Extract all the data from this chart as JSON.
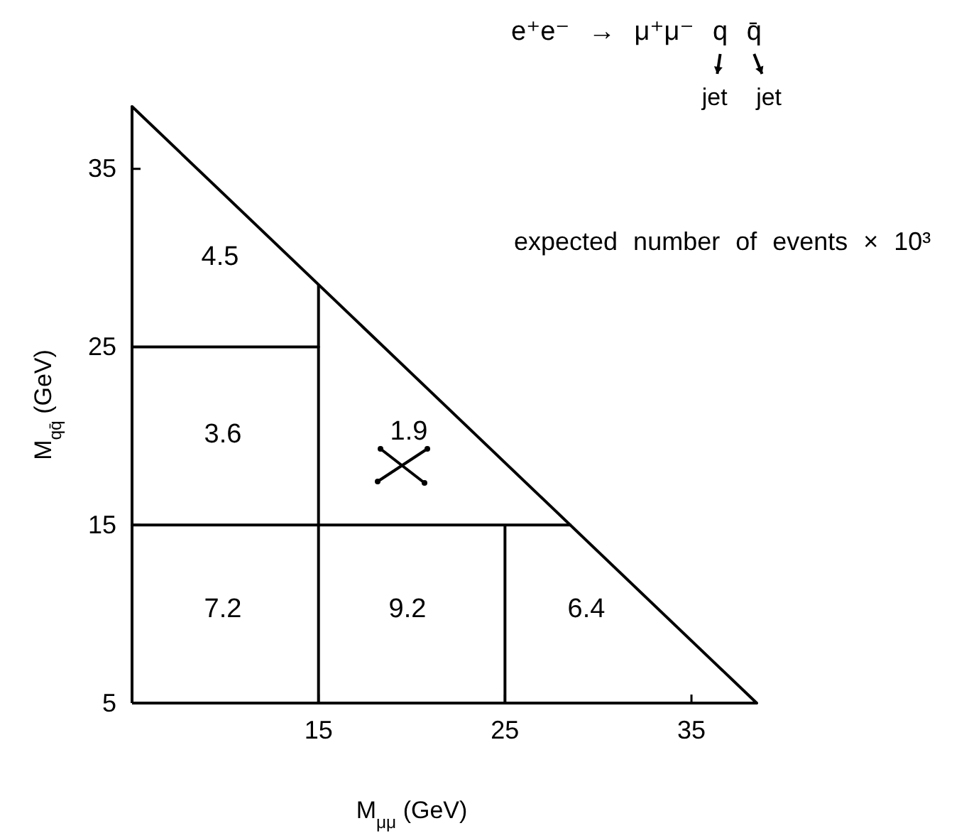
{
  "chart_data": {
    "type": "line",
    "title": "e⁺e⁻ → μ⁺μ⁻ q q̄",
    "subtitle": "expected number of events × 10³",
    "xlabel": "M$_{μμ}$ (GeV)",
    "ylabel": "M$_{qq̄}$ (GeV)",
    "series": [
      {
        "color": "#000000",
        "x": [
          5,
          38.5
        ],
        "values": [
          38.5,
          5
        ]
      },
      {
        "color": "#000000",
        "x": [
          5,
          28.5
        ],
        "values": [
          15,
          15
        ]
      },
      {
        "color": "#000000",
        "x": [
          5,
          15
        ],
        "values": [
          25,
          25
        ]
      }
    ],
    "ref_lines": [
      {
        "axis": "x",
        "value": 15,
        "color": "#000000"
      },
      {
        "axis": "x",
        "value": 25,
        "color": "#000000"
      }
    ],
    "annotations": [
      "jet",
      "jet",
      "4.5",
      "3.6",
      "1.9",
      "7.2",
      "9.2",
      "6.4"
    ],
    "xlim": [
      5,
      38.5
    ],
    "xticks": [
      15,
      25,
      35
    ],
    "ylim": [
      5,
      38.5
    ],
    "yticks": [
      5,
      15,
      25,
      35
    ]
  }
}
